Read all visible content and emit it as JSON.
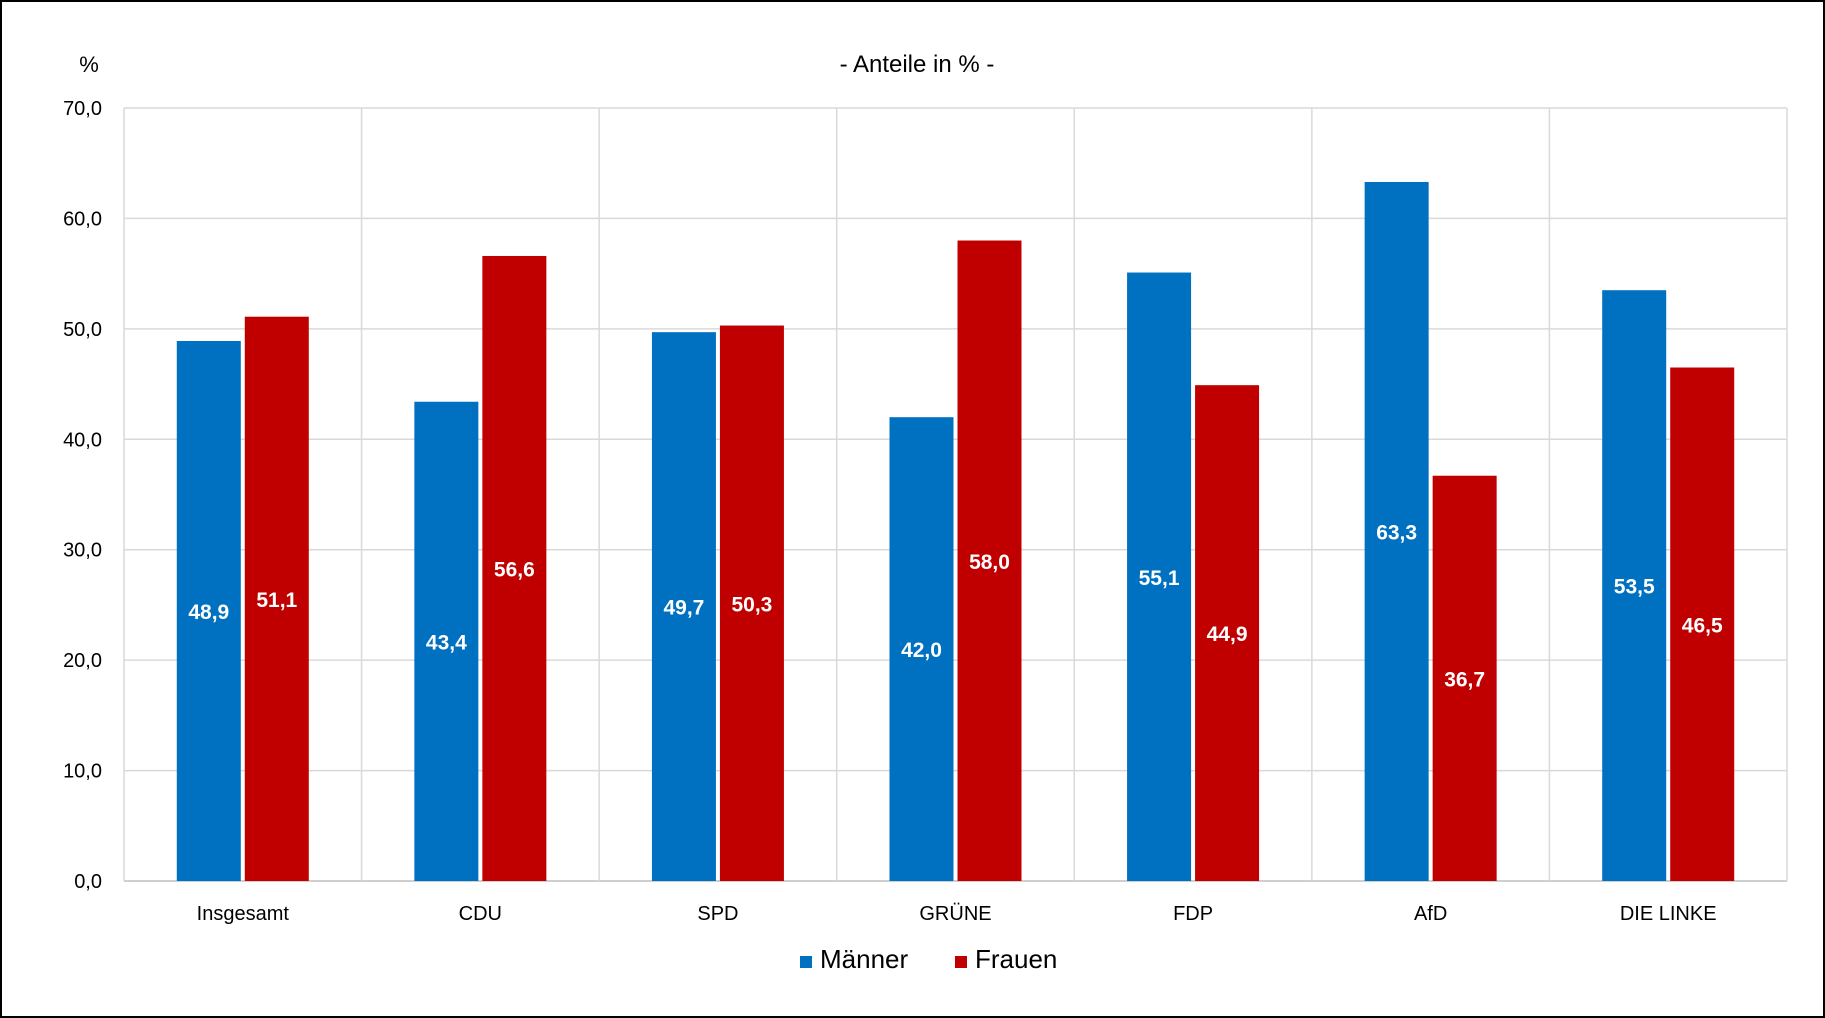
{
  "chart_data": {
    "type": "bar",
    "title": "- Anteile in % -",
    "ylabel": "%",
    "xlabel": "",
    "ylim": [
      0,
      70
    ],
    "yticks": [
      "0,0",
      "10,0",
      "20,0",
      "30,0",
      "40,0",
      "50,0",
      "60,0",
      "70,0"
    ],
    "categories": [
      "Insgesamt",
      "CDU",
      "SPD",
      "GRÜNE",
      "FDP",
      "AfD",
      "DIE LINKE"
    ],
    "series": [
      {
        "name": "Männer",
        "color": "#0070c0",
        "values": [
          48.9,
          43.4,
          49.7,
          42.0,
          55.1,
          63.3,
          53.5
        ],
        "labels": [
          "48,9",
          "43,4",
          "49,7",
          "42,0",
          "55,1",
          "63,3",
          "53,5"
        ]
      },
      {
        "name": "Frauen",
        "color": "#c00000",
        "values": [
          51.1,
          56.6,
          50.3,
          58.0,
          44.9,
          36.7,
          46.5
        ],
        "labels": [
          "51,1",
          "56,6",
          "50,3",
          "58,0",
          "44,9",
          "36,7",
          "46,5"
        ]
      }
    ],
    "grid": "horizontal and vertical",
    "legend_position": "bottom-center"
  }
}
